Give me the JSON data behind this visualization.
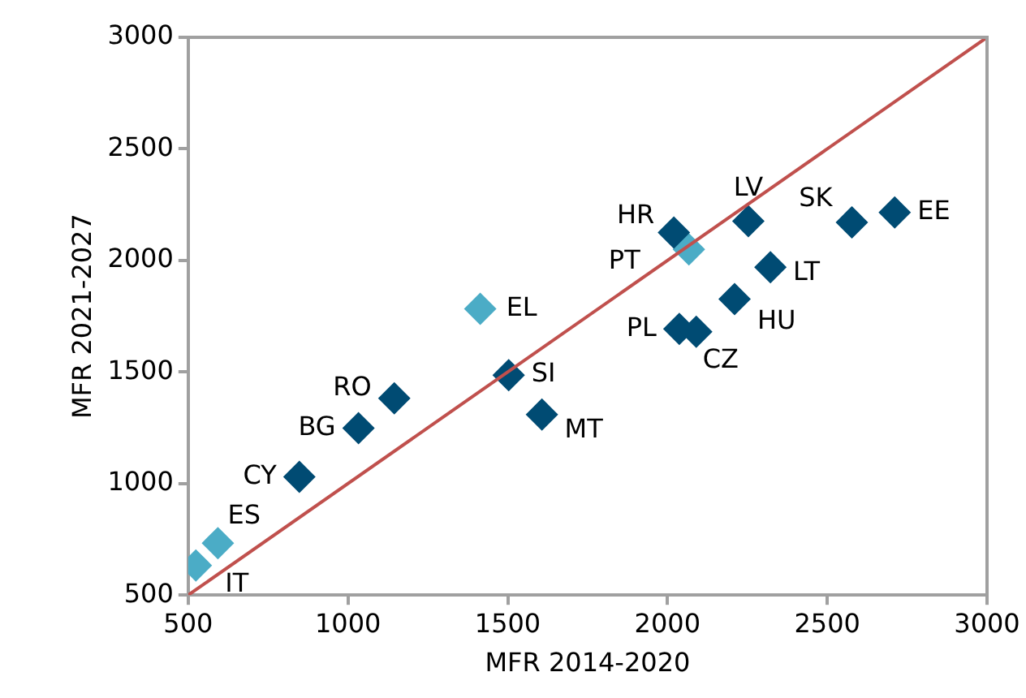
{
  "chart_data": {
    "type": "scatter",
    "xlabel": "MFR 2014-2020",
    "ylabel": "MFR 2021-2027",
    "xlim": [
      500,
      3000
    ],
    "xticks": [
      500,
      1000,
      1500,
      2000,
      2500,
      3000
    ],
    "ylim": [
      500,
      3000
    ],
    "yticks": [
      500,
      1000,
      1500,
      2000,
      2500,
      3000
    ],
    "grid": false,
    "legend": false,
    "marker": "diamond",
    "series": [
      {
        "type": "line",
        "color": "#c0504d",
        "marker": "none",
        "x": [
          500,
          3000
        ],
        "values": [
          500,
          3000
        ]
      },
      {
        "color": "#004b73",
        "x": [
          848,
          1033,
          1145,
          1503,
          1607,
          2037,
          2090,
          2210,
          2322,
          2020,
          2253,
          2577,
          2711
        ],
        "values": [
          1030,
          1248,
          1382,
          1486,
          1309,
          1693,
          1680,
          1827,
          1970,
          2125,
          2176,
          2171,
          2215
        ]
      },
      {
        "color": "#4bacc6",
        "x": [
          524,
          593,
          1414,
          2067
        ],
        "values": [
          633,
          733,
          1783,
          2050
        ]
      }
    ],
    "annotations": [
      {
        "text": "CY",
        "x": 848,
        "y": 1030
      },
      {
        "text": "BG",
        "x": 1033,
        "y": 1248
      },
      {
        "text": "RO",
        "x": 1145,
        "y": 1382
      },
      {
        "text": "SI",
        "x": 1503,
        "y": 1486
      },
      {
        "text": "MT",
        "x": 1607,
        "y": 1309
      },
      {
        "text": "PL",
        "x": 2037,
        "y": 1693
      },
      {
        "text": "CZ",
        "x": 2090,
        "y": 1680
      },
      {
        "text": "HU",
        "x": 2210,
        "y": 1827
      },
      {
        "text": "LT",
        "x": 2322,
        "y": 1970
      },
      {
        "text": "HR",
        "x": 2020,
        "y": 2125
      },
      {
        "text": "LV",
        "x": 2253,
        "y": 2176
      },
      {
        "text": "SK",
        "x": 2577,
        "y": 2171
      },
      {
        "text": "EE",
        "x": 2711,
        "y": 2215
      },
      {
        "text": "IT",
        "x": 524,
        "y": 633
      },
      {
        "text": "ES",
        "x": 593,
        "y": 733
      },
      {
        "text": "EL",
        "x": 1414,
        "y": 1783
      },
      {
        "text": "PT",
        "x": 2067,
        "y": 2050
      }
    ]
  }
}
